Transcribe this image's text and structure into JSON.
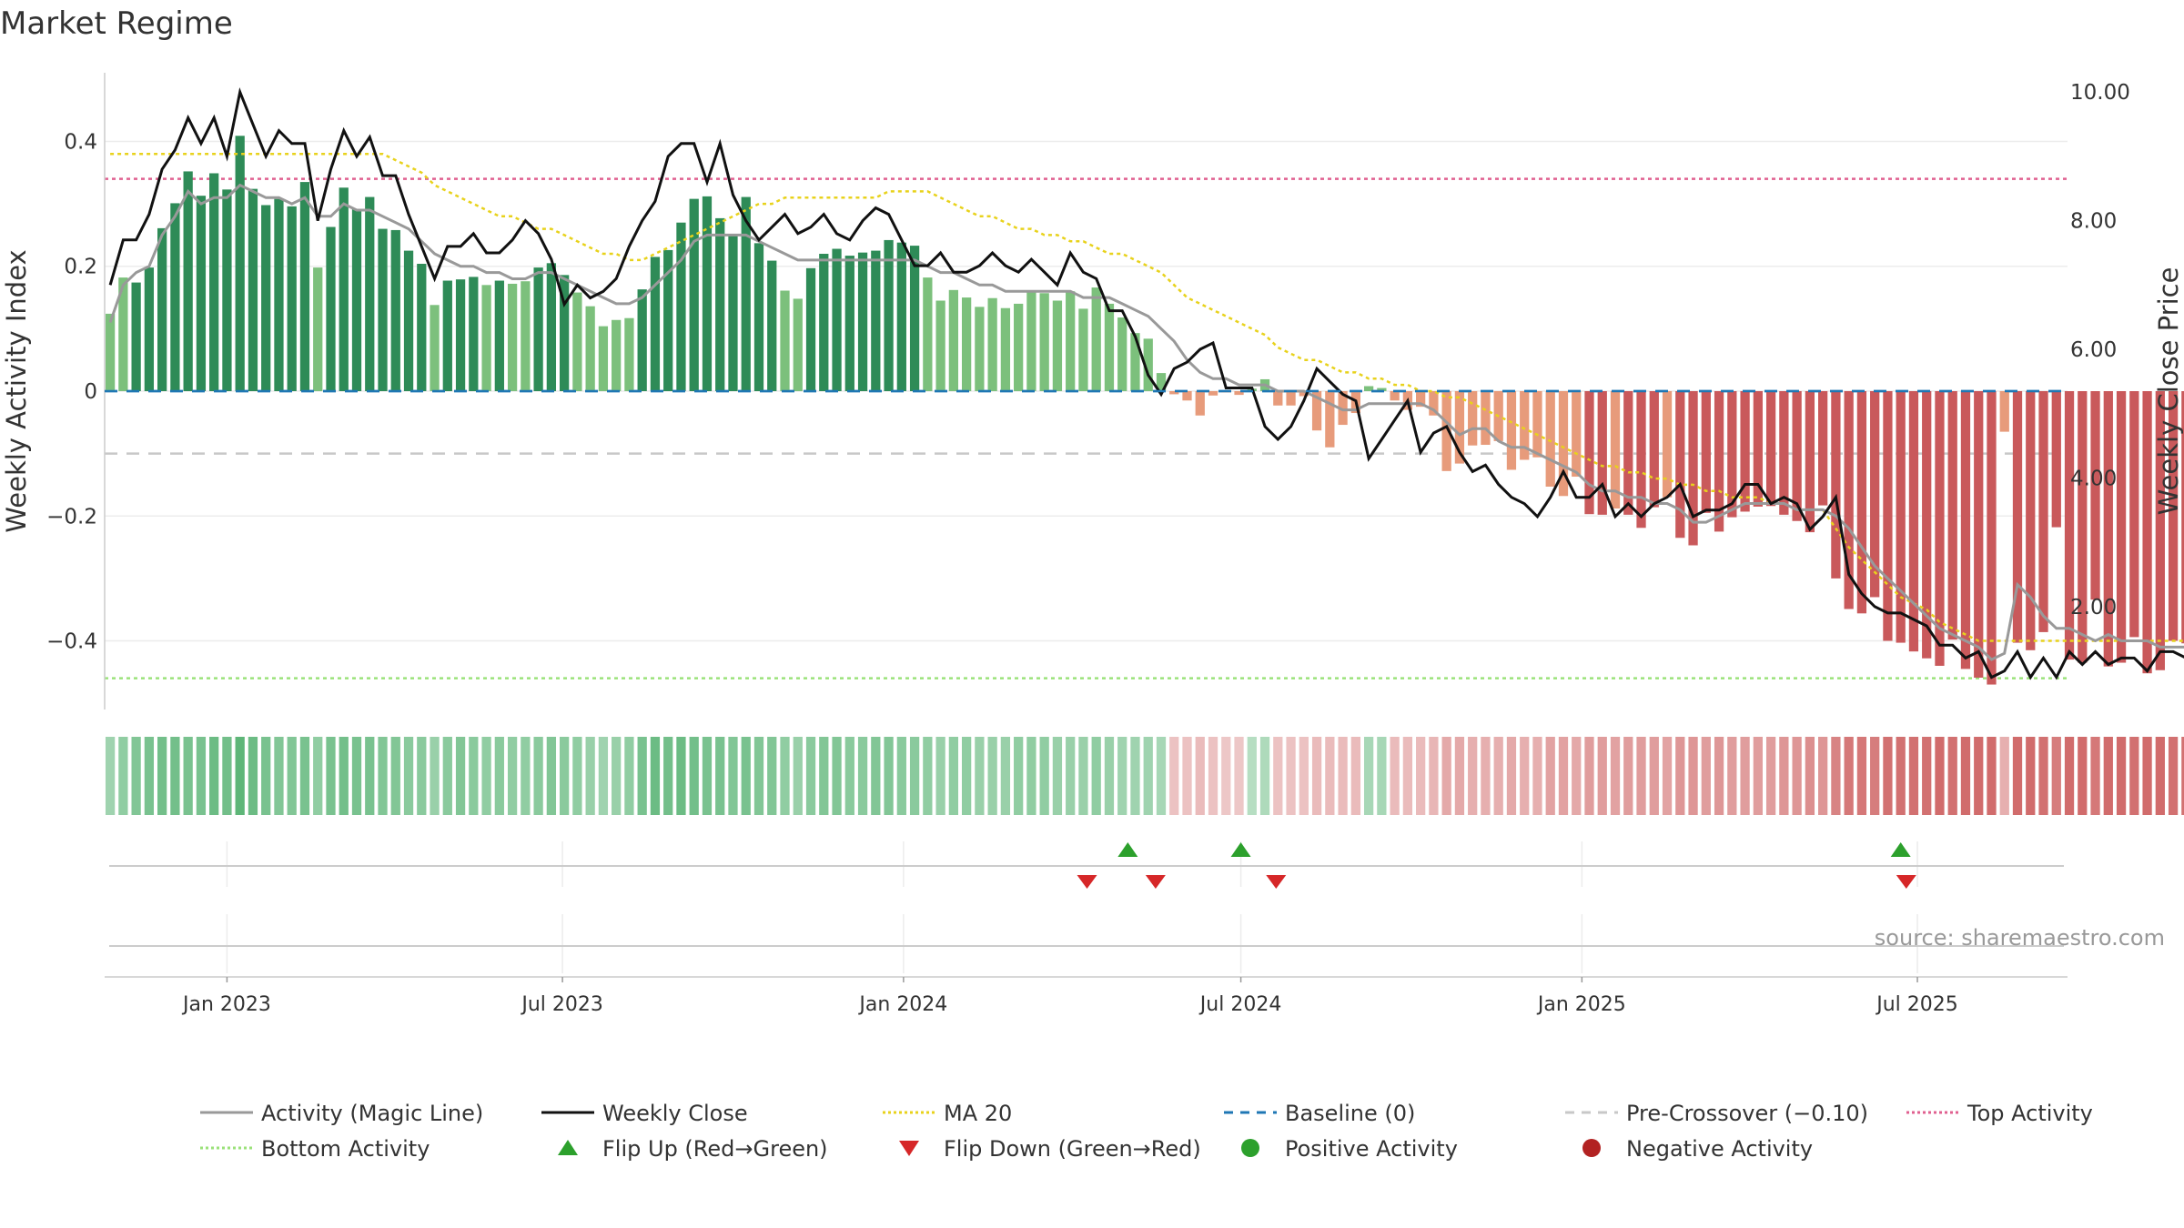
{
  "colors": {
    "pos_strong": "#2e8b57",
    "pos_weak": "#7cc07c",
    "neg_strong": "#c9595b",
    "neg_weak": "#e79b7b",
    "close_line": "#111111",
    "magic_line": "#999999",
    "ma_line": "#e8d21c",
    "baseline": "#1f77b4",
    "pre_crossover": "#c8c8c8",
    "top_activity": "#e06090",
    "bottom_activity": "#9be27a",
    "flip_up": "#2ca02c",
    "flip_down": "#d62728",
    "positive_dot": "#2ca02c",
    "negative_dot": "#b22222"
  },
  "chart_data": {
    "type": "bar",
    "title": "Market Regime",
    "source": "source: sharemaestro.com",
    "ylabel_left": "Weekly Activity Index",
    "ylabel_right": "Weekly Close Price",
    "left_ticks": [
      {
        "value": 0.4,
        "label": "0.4"
      },
      {
        "value": 0.2,
        "label": "0.2"
      },
      {
        "value": 0.0,
        "label": "0"
      },
      {
        "value": -0.2,
        "label": "−0.2"
      },
      {
        "value": -0.4,
        "label": "−0.4"
      }
    ],
    "right_ticks": [
      {
        "value": 10,
        "label": "10.00"
      },
      {
        "value": 8,
        "label": "8.00"
      },
      {
        "value": 6,
        "label": "6.00"
      },
      {
        "value": 4,
        "label": "4.00"
      },
      {
        "value": 2,
        "label": "2.00"
      }
    ],
    "ylim_left": [
      -0.51,
      0.51
    ],
    "ylim_right": [
      0.4,
      10.3
    ],
    "xlim": [
      "2022-10-27",
      "2025-09-20"
    ],
    "x_ticks": [
      {
        "date": "2023-01-01",
        "label": "Jan 2023"
      },
      {
        "date": "2023-07-01",
        "label": "Jul 2023"
      },
      {
        "date": "2024-01-01",
        "label": "Jan 2024"
      },
      {
        "date": "2024-07-01",
        "label": "Jul 2024"
      },
      {
        "date": "2025-01-01",
        "label": "Jan 2025"
      },
      {
        "date": "2025-07-01",
        "label": "Jul 2025"
      }
    ],
    "start_date": "2022-10-30",
    "week_step_days": 7,
    "activity": [
      0.124,
      0.182,
      0.174,
      0.198,
      0.261,
      0.301,
      0.352,
      0.313,
      0.349,
      0.323,
      0.409,
      0.324,
      0.298,
      0.308,
      0.296,
      0.335,
      0.198,
      0.263,
      0.326,
      0.292,
      0.311,
      0.26,
      0.258,
      0.225,
      0.204,
      0.138,
      0.177,
      0.179,
      0.183,
      0.17,
      0.177,
      0.172,
      0.176,
      0.198,
      0.205,
      0.186,
      0.158,
      0.136,
      0.104,
      0.114,
      0.117,
      0.163,
      0.215,
      0.226,
      0.27,
      0.308,
      0.312,
      0.277,
      0.252,
      0.311,
      0.237,
      0.209,
      0.161,
      0.148,
      0.197,
      0.22,
      0.228,
      0.217,
      0.222,
      0.225,
      0.242,
      0.238,
      0.233,
      0.182,
      0.145,
      0.162,
      0.15,
      0.135,
      0.149,
      0.133,
      0.14,
      0.161,
      0.157,
      0.145,
      0.16,
      0.132,
      0.166,
      0.14,
      0.118,
      0.093,
      0.084,
      0.029,
      -0.005,
      -0.015,
      -0.039,
      -0.007,
      -0.002,
      -0.006,
      0.004,
      0.019,
      -0.023,
      -0.023,
      -0.008,
      -0.063,
      -0.09,
      -0.054,
      -0.035,
      0.008,
      0.005,
      -0.015,
      -0.03,
      -0.025,
      -0.039,
      -0.128,
      -0.116,
      -0.087,
      -0.086,
      -0.08,
      -0.126,
      -0.11,
      -0.106,
      -0.153,
      -0.168,
      -0.137,
      -0.197,
      -0.198,
      -0.188,
      -0.198,
      -0.219,
      -0.186,
      -0.17,
      -0.235,
      -0.247,
      -0.195,
      -0.225,
      -0.202,
      -0.193,
      -0.185,
      -0.184,
      -0.198,
      -0.208,
      -0.226,
      -0.183,
      -0.3,
      -0.349,
      -0.356,
      -0.33,
      -0.4,
      -0.403,
      -0.417,
      -0.428,
      -0.44,
      -0.398,
      -0.445,
      -0.459,
      -0.47,
      -0.065,
      -0.403,
      -0.415,
      -0.386,
      -0.218,
      -0.43,
      -0.435,
      -0.334,
      -0.441,
      -0.435,
      -0.394,
      -0.452,
      -0.447,
      -0.4,
      -0.404,
      -0.411,
      -0.412,
      -0.417
    ],
    "intensity": [
      0.3,
      0.4,
      0.5,
      0.55,
      0.6,
      0.6,
      0.55,
      0.55,
      0.65,
      0.6,
      0.75,
      0.65,
      0.55,
      0.5,
      0.5,
      0.55,
      0.4,
      0.55,
      0.6,
      0.55,
      0.55,
      0.5,
      0.5,
      0.45,
      0.45,
      0.35,
      0.45,
      0.5,
      0.45,
      0.4,
      0.45,
      0.4,
      0.4,
      0.45,
      0.5,
      0.45,
      0.4,
      0.35,
      0.3,
      0.35,
      0.4,
      0.55,
      0.65,
      0.6,
      0.65,
      0.6,
      0.55,
      0.55,
      0.5,
      0.55,
      0.5,
      0.5,
      0.4,
      0.35,
      0.45,
      0.5,
      0.5,
      0.45,
      0.45,
      0.5,
      0.5,
      0.45,
      0.45,
      0.4,
      0.35,
      0.4,
      0.4,
      0.35,
      0.35,
      0.35,
      0.4,
      0.4,
      0.4,
      0.35,
      0.35,
      0.35,
      0.4,
      0.35,
      0.3,
      0.3,
      0.3,
      0.25,
      0.15,
      0.15,
      0.2,
      0.15,
      0.1,
      0.1,
      0.15,
      0.2,
      0.15,
      0.15,
      0.15,
      0.2,
      0.2,
      0.2,
      0.2,
      0.25,
      0.25,
      0.2,
      0.2,
      0.2,
      0.25,
      0.35,
      0.35,
      0.3,
      0.3,
      0.3,
      0.35,
      0.3,
      0.3,
      0.4,
      0.4,
      0.35,
      0.45,
      0.45,
      0.4,
      0.45,
      0.45,
      0.45,
      0.4,
      0.5,
      0.5,
      0.45,
      0.5,
      0.45,
      0.45,
      0.45,
      0.45,
      0.5,
      0.5,
      0.55,
      0.5,
      0.65,
      0.75,
      0.75,
      0.7,
      0.8,
      0.8,
      0.8,
      0.8,
      0.85,
      0.8,
      0.85,
      0.85,
      0.85,
      0.3,
      0.85,
      0.85,
      0.8,
      0.7,
      0.85,
      0.85,
      0.75,
      0.85,
      0.85,
      0.8,
      0.85,
      0.85,
      0.8,
      0.8,
      0.8,
      0.8,
      0.8
    ],
    "weekly_close": [
      7.0,
      7.7,
      7.7,
      8.1,
      8.8,
      9.1,
      9.6,
      9.2,
      9.6,
      9.0,
      10.0,
      9.5,
      9.0,
      9.4,
      9.2,
      9.2,
      8.0,
      8.8,
      9.4,
      9.0,
      9.3,
      8.7,
      8.7,
      8.1,
      7.6,
      7.1,
      7.6,
      7.6,
      7.8,
      7.5,
      7.5,
      7.7,
      8.0,
      7.8,
      7.4,
      6.7,
      7.0,
      6.8,
      6.9,
      7.1,
      7.6,
      8.0,
      8.3,
      9.0,
      9.2,
      9.2,
      8.6,
      9.2,
      8.4,
      8.0,
      7.7,
      7.9,
      8.1,
      7.8,
      7.9,
      8.1,
      7.8,
      7.7,
      8.0,
      8.2,
      8.1,
      7.7,
      7.3,
      7.3,
      7.5,
      7.2,
      7.2,
      7.3,
      7.5,
      7.3,
      7.2,
      7.4,
      7.2,
      7.0,
      7.5,
      7.2,
      7.1,
      6.6,
      6.6,
      6.2,
      5.6,
      5.3,
      5.7,
      5.8,
      6.0,
      6.1,
      5.4,
      5.4,
      5.4,
      4.8,
      4.6,
      4.8,
      5.2,
      5.7,
      5.5,
      5.3,
      5.2,
      4.3,
      4.6,
      4.9,
      5.2,
      4.4,
      4.7,
      4.8,
      4.4,
      4.1,
      4.2,
      3.9,
      3.7,
      3.6,
      3.4,
      3.7,
      4.1,
      3.7,
      3.7,
      3.9,
      3.4,
      3.6,
      3.4,
      3.6,
      3.7,
      3.9,
      3.4,
      3.5,
      3.5,
      3.6,
      3.9,
      3.9,
      3.6,
      3.7,
      3.6,
      3.2,
      3.4,
      3.7,
      2.5,
      2.2,
      2.0,
      1.9,
      1.9,
      1.8,
      1.7,
      1.4,
      1.4,
      1.2,
      1.3,
      0.9,
      1.0,
      1.3,
      0.9,
      1.2,
      0.9,
      1.3,
      1.1,
      1.3,
      1.1,
      1.2,
      1.2,
      1.0,
      1.3,
      1.3,
      1.2,
      1.4,
      1.7,
      1.9,
      1.9,
      1.9,
      1.8
    ],
    "magic_line": [
      0.11,
      0.17,
      0.19,
      0.2,
      0.25,
      0.28,
      0.32,
      0.3,
      0.31,
      0.31,
      0.33,
      0.32,
      0.31,
      0.31,
      0.3,
      0.31,
      0.28,
      0.28,
      0.3,
      0.29,
      0.29,
      0.28,
      0.27,
      0.26,
      0.24,
      0.22,
      0.21,
      0.2,
      0.2,
      0.19,
      0.19,
      0.18,
      0.18,
      0.19,
      0.19,
      0.18,
      0.17,
      0.16,
      0.15,
      0.14,
      0.14,
      0.15,
      0.17,
      0.19,
      0.21,
      0.24,
      0.25,
      0.25,
      0.25,
      0.25,
      0.24,
      0.23,
      0.22,
      0.21,
      0.21,
      0.21,
      0.21,
      0.21,
      0.21,
      0.21,
      0.21,
      0.21,
      0.21,
      0.2,
      0.19,
      0.19,
      0.18,
      0.17,
      0.17,
      0.16,
      0.16,
      0.16,
      0.16,
      0.16,
      0.16,
      0.15,
      0.15,
      0.15,
      0.14,
      0.13,
      0.12,
      0.1,
      0.08,
      0.05,
      0.03,
      0.02,
      0.02,
      0.01,
      0.01,
      0.01,
      0.0,
      0.0,
      0.0,
      -0.01,
      -0.02,
      -0.03,
      -0.03,
      -0.02,
      -0.02,
      -0.02,
      -0.02,
      -0.02,
      -0.03,
      -0.05,
      -0.07,
      -0.06,
      -0.06,
      -0.08,
      -0.09,
      -0.09,
      -0.1,
      -0.11,
      -0.12,
      -0.13,
      -0.15,
      -0.16,
      -0.16,
      -0.17,
      -0.17,
      -0.18,
      -0.18,
      -0.19,
      -0.21,
      -0.21,
      -0.2,
      -0.19,
      -0.18,
      -0.18,
      -0.18,
      -0.18,
      -0.19,
      -0.19,
      -0.19,
      -0.2,
      -0.22,
      -0.25,
      -0.28,
      -0.3,
      -0.32,
      -0.34,
      -0.36,
      -0.38,
      -0.39,
      -0.4,
      -0.41,
      -0.43,
      -0.42,
      -0.31,
      -0.33,
      -0.36,
      -0.38,
      -0.38,
      -0.39,
      -0.4,
      -0.39,
      -0.4,
      -0.4,
      -0.4,
      -0.41,
      -0.41,
      -0.41,
      -0.41,
      -0.41,
      -0.41,
      -0.41
    ],
    "ma20": [
      0.38,
      0.38,
      0.38,
      0.38,
      0.38,
      0.38,
      0.38,
      0.38,
      0.38,
      0.38,
      0.38,
      0.38,
      0.38,
      0.38,
      0.38,
      0.38,
      0.38,
      0.38,
      0.38,
      0.38,
      0.38,
      0.38,
      0.37,
      0.36,
      0.35,
      0.33,
      0.32,
      0.31,
      0.3,
      0.29,
      0.28,
      0.28,
      0.27,
      0.26,
      0.26,
      0.25,
      0.24,
      0.23,
      0.22,
      0.22,
      0.21,
      0.21,
      0.22,
      0.23,
      0.24,
      0.25,
      0.26,
      0.27,
      0.28,
      0.29,
      0.3,
      0.3,
      0.31,
      0.31,
      0.31,
      0.31,
      0.31,
      0.31,
      0.31,
      0.31,
      0.32,
      0.32,
      0.32,
      0.32,
      0.31,
      0.3,
      0.29,
      0.28,
      0.28,
      0.27,
      0.26,
      0.26,
      0.25,
      0.25,
      0.24,
      0.24,
      0.23,
      0.22,
      0.22,
      0.21,
      0.2,
      0.19,
      0.17,
      0.15,
      0.14,
      0.13,
      0.12,
      0.11,
      0.1,
      0.09,
      0.07,
      0.06,
      0.05,
      0.05,
      0.04,
      0.03,
      0.03,
      0.02,
      0.02,
      0.01,
      0.01,
      0.0,
      0.0,
      -0.01,
      -0.01,
      -0.02,
      -0.03,
      -0.04,
      -0.05,
      -0.06,
      -0.07,
      -0.08,
      -0.09,
      -0.1,
      -0.11,
      -0.12,
      -0.12,
      -0.13,
      -0.13,
      -0.14,
      -0.14,
      -0.15,
      -0.15,
      -0.16,
      -0.16,
      -0.17,
      -0.17,
      -0.17,
      -0.18,
      -0.18,
      -0.19,
      -0.19,
      -0.19,
      -0.22,
      -0.25,
      -0.27,
      -0.29,
      -0.31,
      -0.33,
      -0.34,
      -0.35,
      -0.37,
      -0.38,
      -0.39,
      -0.4,
      -0.4,
      -0.4,
      -0.4,
      -0.4,
      -0.4,
      -0.4,
      -0.4,
      -0.4,
      -0.4,
      -0.4,
      -0.4,
      -0.4,
      -0.4,
      -0.4,
      -0.4,
      -0.4,
      -0.4,
      -0.4,
      -0.39
    ],
    "reference_lines": {
      "baseline": 0.0,
      "pre_crossover": -0.1,
      "top_activity": 0.34,
      "bottom_activity": -0.46
    },
    "flip_up_dates": [
      "2024-05-01",
      "2024-07-01",
      "2025-06-22"
    ],
    "flip_down_dates": [
      "2024-04-09",
      "2024-05-16",
      "2024-07-20",
      "2025-06-25"
    ],
    "legend": [
      {
        "label": "Activity (Magic Line)",
        "kind": "line",
        "color": "#999999",
        "dash": ""
      },
      {
        "label": "Weekly Close",
        "kind": "line",
        "color": "#111111",
        "dash": ""
      },
      {
        "label": "MA 20",
        "kind": "line",
        "color": "#e8d21c",
        "dash": "3 3"
      },
      {
        "label": "Baseline (0)",
        "kind": "line",
        "color": "#1f77b4",
        "dash": "10 8"
      },
      {
        "label": "Pre-Crossover (−0.10)",
        "kind": "line",
        "color": "#c8c8c8",
        "dash": "10 8"
      },
      {
        "label": "Top Activity",
        "kind": "line",
        "color": "#e06090",
        "dash": "3 3"
      },
      {
        "label": "Bottom Activity",
        "kind": "line",
        "color": "#9be27a",
        "dash": "3 3"
      },
      {
        "label": "Flip Up (Red→Green)",
        "kind": "tri-up",
        "color": "#2ca02c"
      },
      {
        "label": "Flip Down (Green→Red)",
        "kind": "tri-down",
        "color": "#d62728"
      },
      {
        "label": "Positive Activity",
        "kind": "dot",
        "color": "#2ca02c"
      },
      {
        "label": "Negative Activity",
        "kind": "dot",
        "color": "#b22222"
      }
    ]
  }
}
